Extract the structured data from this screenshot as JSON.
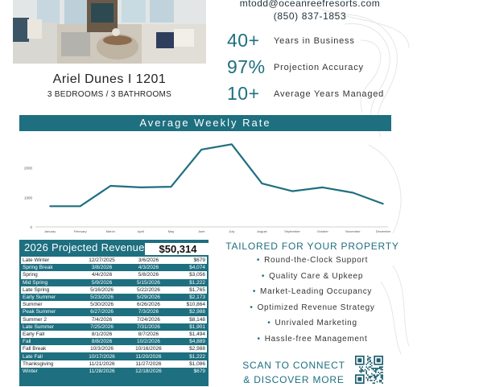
{
  "property": {
    "name": "Ariel Dunes I 1201",
    "subtitle": "3 BEDROOMS / 3 BATHROOMS"
  },
  "contact": {
    "email": "mtodd@oceanreefresorts.com",
    "phone": "(850) 837-1853"
  },
  "stats": [
    {
      "value": "40+",
      "label": "Years in Business"
    },
    {
      "value": "97%",
      "label": "Projection Accuracy"
    },
    {
      "value": "10+",
      "label": "Average Years Managed"
    }
  ],
  "chart_header": "Average Weekly Rate",
  "chart_data": {
    "type": "line",
    "title": "Average Weekly Rate",
    "categories": [
      "January",
      "February",
      "March",
      "April",
      "May",
      "June",
      "July",
      "August",
      "September",
      "October",
      "November",
      "December"
    ],
    "values": [
      700,
      700,
      1390,
      1340,
      1360,
      2620,
      2800,
      1470,
      1210,
      1340,
      1160,
      780
    ],
    "ylim": [
      0,
      3000
    ],
    "yticks": [
      "0",
      "1000",
      "2000"
    ],
    "grid": false,
    "color": "#1e6f7f"
  },
  "revenue": {
    "title": "2026 Projected Revenue",
    "total": "$50,314",
    "rows": [
      [
        "Late Winter",
        "12/27/2025",
        "3/6/2026",
        "$679"
      ],
      [
        "Spring Break",
        "3/8/2026",
        "4/3/2026",
        "$4,074"
      ],
      [
        "Spring",
        "4/4/2026",
        "5/8/2026",
        "$3,056"
      ],
      [
        "Mid Spring",
        "5/9/2026",
        "5/15/2026",
        "$1,222"
      ],
      [
        "Late Spring",
        "5/16/2026",
        "5/22/2026",
        "$1,765"
      ],
      [
        "Early Summer",
        "5/23/2026",
        "5/29/2026",
        "$2,173"
      ],
      [
        "Summer",
        "5/30/2026",
        "6/26/2026",
        "$10,864"
      ],
      [
        "Peak Summer",
        "6/27/2026",
        "7/3/2026",
        "$2,988"
      ],
      [
        "Summer 2",
        "7/4/2026",
        "7/24/2026",
        "$8,148"
      ],
      [
        "Late Summer",
        "7/25/2026",
        "7/31/2026",
        "$1,901"
      ],
      [
        "Early Fall",
        "8/1/2026",
        "8/7/2026",
        "$1,494"
      ],
      [
        "Fall",
        "8/8/2026",
        "10/2/2026",
        "$4,889"
      ],
      [
        "Fall Break",
        "10/3/2026",
        "10/16/2026",
        "$2,988"
      ],
      [
        "Late Fall",
        "10/17/2026",
        "11/20/2026",
        "$1,222"
      ],
      [
        "Thanksgiving",
        "11/21/2026",
        "11/27/2026",
        "$1,086"
      ],
      [
        "Winter",
        "11/28/2026",
        "12/18/2026",
        "$679"
      ]
    ]
  },
  "tailored": {
    "title": "TAILORED FOR YOUR PROPERTY",
    "items": [
      "Round-the-Clock Support",
      "Quality Care & Upkeep",
      "Market-Leading Occupancy",
      "Optimized Revenue Strategy",
      "Unrivaled Marketing",
      "Hassle-free Management"
    ]
  },
  "scan": {
    "line1": "SCAN TO CONNECT",
    "line2": "& DISCOVER MORE"
  }
}
